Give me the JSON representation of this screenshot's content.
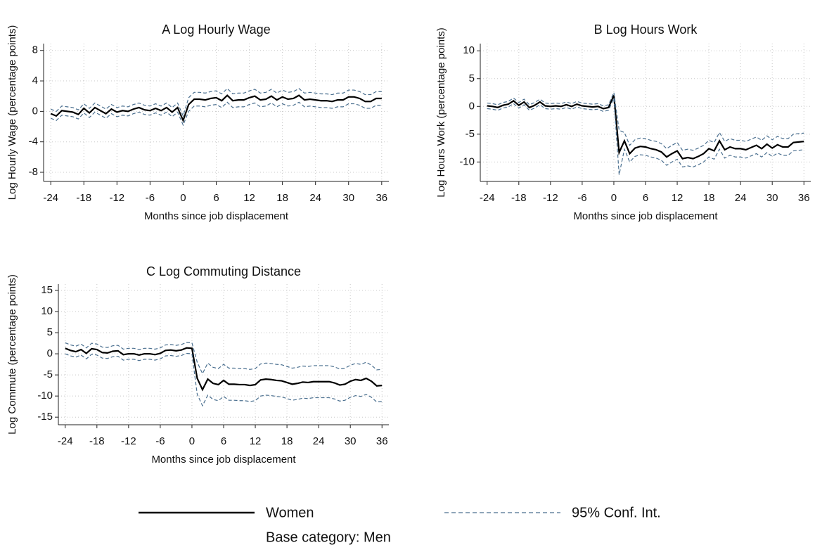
{
  "chart_data": [
    {
      "type": "line",
      "title": "A Log Hourly Wage",
      "xlabel": "Months since job displacement",
      "ylabel": "Log Hourly Wage (percentage points)",
      "grid": true,
      "xlim": [
        -25.3,
        37.3
      ],
      "xticks": [
        -24,
        -18,
        -12,
        -6,
        0,
        6,
        12,
        18,
        24,
        30,
        36
      ],
      "ylim": [
        -9.2,
        8.9
      ],
      "yticks": [
        -8,
        -4,
        0,
        4,
        8
      ],
      "x": [
        -24,
        -23,
        -22,
        -21,
        -20,
        -19,
        -18,
        -17,
        -16,
        -15,
        -14,
        -13,
        -12,
        -11,
        -10,
        -9,
        -8,
        -7,
        -6,
        -5,
        -4,
        -3,
        -2,
        -1,
        0,
        1,
        2,
        3,
        4,
        5,
        6,
        7,
        8,
        9,
        10,
        11,
        12,
        13,
        14,
        15,
        16,
        17,
        18,
        19,
        20,
        21,
        22,
        23,
        24,
        25,
        26,
        27,
        28,
        29,
        30,
        31,
        32,
        33,
        34,
        35,
        36
      ],
      "series": [
        {
          "name": "Women",
          "color": "#000000",
          "values": [
            -0.3,
            -0.6,
            0.1,
            0,
            -0.1,
            -0.4,
            0.4,
            -0.2,
            0.5,
            0.1,
            -0.3,
            0.3,
            -0.1,
            0.1,
            0,
            0.3,
            0.5,
            0.2,
            0.1,
            0.4,
            0.1,
            0.5,
            -0.1,
            0.5,
            -1.2,
            0.9,
            1.6,
            1.6,
            1.5,
            1.7,
            1.8,
            1.4,
            2.1,
            1.4,
            1.5,
            1.5,
            1.8,
            2,
            1.5,
            1.6,
            2,
            1.5,
            1.9,
            1.6,
            1.7,
            2.1,
            1.5,
            1.6,
            1.5,
            1.4,
            1.4,
            1.3,
            1.5,
            1.5,
            1.9,
            1.9,
            1.7,
            1.3,
            1.3,
            1.7,
            1.7
          ]
        },
        {
          "name": "95% Conf. Int.",
          "color": "#4a6f8f",
          "upper": [
            0.3,
            0,
            0.7,
            0.6,
            0.5,
            0.2,
            1,
            0.4,
            1.1,
            0.7,
            0.3,
            0.9,
            0.5,
            0.7,
            0.6,
            0.9,
            1.1,
            0.8,
            0.7,
            1,
            0.7,
            1.1,
            0.5,
            1.1,
            -0.6,
            1.8,
            2.5,
            2.5,
            2.4,
            2.6,
            2.7,
            2.3,
            3,
            2.3,
            2.4,
            2.4,
            2.7,
            2.9,
            2.4,
            2.5,
            2.9,
            2.4,
            2.8,
            2.5,
            2.6,
            3,
            2.4,
            2.5,
            2.4,
            2.3,
            2.3,
            2.2,
            2.4,
            2.4,
            2.8,
            2.8,
            2.6,
            2.2,
            2.2,
            2.6,
            2.6
          ],
          "lower": [
            -0.9,
            -1.2,
            -0.5,
            -0.6,
            -0.7,
            -1,
            -0.2,
            -0.8,
            -0.1,
            -0.5,
            -0.9,
            -0.3,
            -0.7,
            -0.5,
            -0.6,
            -0.3,
            -0.1,
            -0.4,
            -0.5,
            -0.2,
            -0.5,
            -0.1,
            -0.7,
            -0.1,
            -1.8,
            0,
            0.7,
            0.7,
            0.6,
            0.8,
            0.9,
            0.5,
            1.2,
            0.5,
            0.6,
            0.6,
            0.9,
            1.1,
            0.6,
            0.7,
            1.1,
            0.6,
            1,
            0.7,
            0.8,
            1.2,
            0.6,
            0.7,
            0.6,
            0.5,
            0.5,
            0.4,
            0.6,
            0.6,
            1,
            1,
            0.8,
            0.4,
            0.4,
            0.8,
            0.8
          ]
        }
      ]
    },
    {
      "type": "line",
      "title": "B Log Hours Work",
      "xlabel": "Months since job displacement",
      "ylabel": "Log Hours Work (percentage points)",
      "grid": true,
      "xlim": [
        -25.3,
        37.3
      ],
      "xticks": [
        -24,
        -18,
        -12,
        -6,
        0,
        6,
        12,
        18,
        24,
        30,
        36
      ],
      "ylim": [
        -13.5,
        11.3
      ],
      "yticks": [
        -10,
        -5,
        0,
        5,
        10
      ],
      "x": [
        -24,
        -23,
        -22,
        -21,
        -20,
        -19,
        -18,
        -17,
        -16,
        -15,
        -14,
        -13,
        -12,
        -11,
        -10,
        -9,
        -8,
        -7,
        -6,
        -5,
        -4,
        -3,
        -2,
        -1,
        0,
        1,
        2,
        3,
        4,
        5,
        6,
        7,
        8,
        9,
        10,
        11,
        12,
        13,
        14,
        15,
        16,
        17,
        18,
        19,
        20,
        21,
        22,
        23,
        24,
        25,
        26,
        27,
        28,
        29,
        30,
        31,
        32,
        33,
        34,
        35,
        36
      ],
      "series": [
        {
          "name": "Women",
          "color": "#000000",
          "values": [
            0.1,
            0,
            -0.2,
            0.2,
            0.4,
            1,
            0.2,
            0.8,
            -0.2,
            0.2,
            0.8,
            0.1,
            0,
            0.1,
            0,
            0.3,
            0,
            0.4,
            0.1,
            0,
            -0.1,
            0,
            -0.4,
            -0.2,
            2,
            -8.3,
            -6.2,
            -8.5,
            -7.5,
            -7.2,
            -7.3,
            -7.6,
            -7.8,
            -8.2,
            -9.1,
            -8.5,
            -8,
            -9.4,
            -9.2,
            -9.4,
            -9,
            -8.5,
            -7.6,
            -8,
            -6.2,
            -7.8,
            -7.3,
            -7.6,
            -7.6,
            -7.8,
            -7.4,
            -7,
            -7.6,
            -6.8,
            -7.5,
            -6.9,
            -7.3,
            -7.3,
            -6.5,
            -6.4,
            -6.3
          ]
        },
        {
          "name": "95% Conf. Int.",
          "color": "#4a6f8f",
          "upper": [
            0.6,
            0.5,
            0.3,
            0.7,
            0.9,
            1.5,
            0.7,
            1.3,
            0.3,
            0.7,
            1.3,
            0.6,
            0.5,
            0.6,
            0.5,
            0.8,
            0.5,
            0.9,
            0.6,
            0.5,
            0.4,
            0.5,
            0.1,
            0.3,
            2.5,
            -4.3,
            -4.7,
            -7,
            -6,
            -5.7,
            -5.8,
            -6.1,
            -6.3,
            -6.7,
            -7.6,
            -7,
            -6.5,
            -7.9,
            -7.7,
            -7.9,
            -7.5,
            -7,
            -6.1,
            -6.5,
            -4.7,
            -6.3,
            -5.8,
            -6.1,
            -6.1,
            -6.3,
            -5.9,
            -5.5,
            -6.1,
            -5.3,
            -6,
            -5.4,
            -5.8,
            -5.8,
            -5,
            -4.9,
            -4.8
          ],
          "lower": [
            -0.4,
            -0.5,
            -0.7,
            -0.3,
            -0.1,
            0.5,
            -0.3,
            0.3,
            -0.7,
            -0.3,
            0.3,
            -0.4,
            -0.5,
            -0.4,
            -0.5,
            -0.2,
            -0.5,
            -0.1,
            -0.4,
            -0.5,
            -0.6,
            -0.5,
            -0.9,
            -0.7,
            1.5,
            -12.3,
            -7.7,
            -10,
            -9,
            -8.7,
            -8.8,
            -9.1,
            -9.3,
            -9.7,
            -10.6,
            -10,
            -9.5,
            -10.9,
            -10.7,
            -10.9,
            -10.5,
            -10,
            -9.1,
            -9.5,
            -7.7,
            -9.3,
            -8.8,
            -9.1,
            -9.1,
            -9.3,
            -8.9,
            -8.5,
            -9.1,
            -8.3,
            -9,
            -8.4,
            -8.8,
            -8.8,
            -8,
            -7.9,
            -7.8
          ]
        }
      ]
    },
    {
      "type": "line",
      "title": "C Log Commuting Distance",
      "xlabel": "Months since job displacement",
      "ylabel": "Log Commute (percentage points)",
      "grid": true,
      "xlim": [
        -25.3,
        37.3
      ],
      "xticks": [
        -24,
        -18,
        -12,
        -6,
        0,
        6,
        12,
        18,
        24,
        30,
        36
      ],
      "ylim": [
        -16.8,
        16.5
      ],
      "yticks": [
        -15,
        -10,
        -5,
        0,
        5,
        10,
        15
      ],
      "x": [
        -24,
        -23,
        -22,
        -21,
        -20,
        -19,
        -18,
        -17,
        -16,
        -15,
        -14,
        -13,
        -12,
        -11,
        -10,
        -9,
        -8,
        -7,
        -6,
        -5,
        -4,
        -3,
        -2,
        -1,
        0,
        1,
        2,
        3,
        4,
        5,
        6,
        7,
        8,
        9,
        10,
        11,
        12,
        13,
        14,
        15,
        16,
        17,
        18,
        19,
        20,
        21,
        22,
        23,
        24,
        25,
        26,
        27,
        28,
        29,
        30,
        31,
        32,
        33,
        34,
        35,
        36
      ],
      "series": [
        {
          "name": "Women",
          "color": "#000000",
          "values": [
            1.3,
            0.8,
            0.5,
            1,
            0.1,
            1.2,
            1,
            0.3,
            0.2,
            0.6,
            0.7,
            -0.2,
            0,
            0,
            -0.3,
            0,
            0,
            -0.2,
            0.1,
            0.8,
            0.9,
            0.7,
            0.9,
            1.4,
            1.3,
            -5.8,
            -8.5,
            -6,
            -7,
            -7.3,
            -6.3,
            -7.2,
            -7.2,
            -7.3,
            -7.3,
            -7.5,
            -7.3,
            -6.2,
            -6,
            -6.1,
            -6.3,
            -6.4,
            -6.8,
            -7.2,
            -7,
            -6.7,
            -6.8,
            -6.6,
            -6.6,
            -6.6,
            -6.6,
            -6.9,
            -7.4,
            -7.2,
            -6.5,
            -6.1,
            -6.3,
            -5.8,
            -6.5,
            -7.6,
            -7.5
          ]
        },
        {
          "name": "95% Conf. Int.",
          "color": "#4a6f8f",
          "upper": [
            2.6,
            2.1,
            1.8,
            2.3,
            1.4,
            2.5,
            2.3,
            1.6,
            1.5,
            1.9,
            2,
            1.1,
            1.3,
            1.3,
            1,
            1.3,
            1.3,
            1.1,
            1.4,
            2.1,
            2.2,
            2,
            2.2,
            2.7,
            2.6,
            -2,
            -4.7,
            -2.2,
            -3.2,
            -3.5,
            -2.5,
            -3.4,
            -3.4,
            -3.5,
            -3.5,
            -3.7,
            -3.5,
            -2.4,
            -2.2,
            -2.3,
            -2.5,
            -2.6,
            -3,
            -3.4,
            -3.2,
            -2.9,
            -3,
            -2.8,
            -2.8,
            -2.8,
            -2.8,
            -3.1,
            -3.6,
            -3.4,
            -2.7,
            -2.3,
            -2.5,
            -2,
            -2.7,
            -3.8,
            -3.7
          ],
          "lower": [
            0,
            -0.5,
            -0.8,
            -0.3,
            -1.2,
            -0.1,
            -0.3,
            -1,
            -1.1,
            -0.7,
            -0.6,
            -1.5,
            -1.3,
            -1.3,
            -1.6,
            -1.3,
            -1.3,
            -1.5,
            -1.2,
            -0.5,
            -0.4,
            -0.6,
            -0.4,
            0.1,
            0,
            -9.6,
            -12.3,
            -9.8,
            -10.8,
            -11.1,
            -10.1,
            -11,
            -11,
            -11.1,
            -11.1,
            -11.3,
            -11.1,
            -10,
            -9.8,
            -9.9,
            -10.1,
            -10.2,
            -10.6,
            -11,
            -10.8,
            -10.5,
            -10.6,
            -10.4,
            -10.4,
            -10.4,
            -10.4,
            -10.7,
            -11.2,
            -11,
            -10.3,
            -9.9,
            -10.1,
            -9.6,
            -10.3,
            -11.4,
            -11.3
          ]
        }
      ]
    }
  ],
  "legend_position": "bottom",
  "note": "Base category: Men"
}
